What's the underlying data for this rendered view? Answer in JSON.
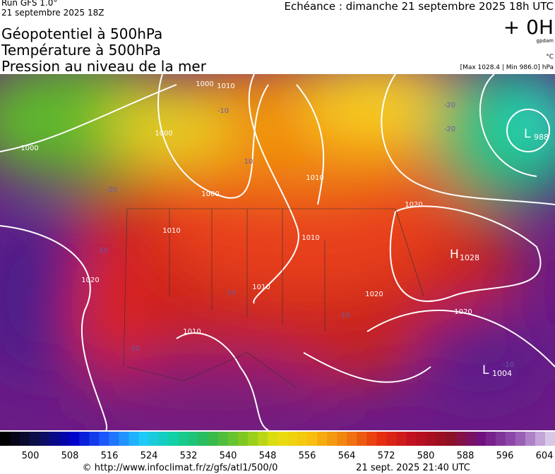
{
  "header": {
    "run": "Run GFS 1.0°",
    "run_time": "21 septembre 2025 18Z",
    "echeance": "Echéance : dimanche 21 septembre 2025 18h UTC",
    "offset": "+ 0H",
    "unit_geo": "gpdam",
    "unit_temp": "°C",
    "pressure_range": "[Max 1028.4 | Min 986.0] hPa"
  },
  "titles": [
    "Géopotentiel à 500hPa",
    "Température à 500hPa",
    "Pression au niveau de la mer"
  ],
  "map": {
    "isobar_labels": [
      "1000",
      "1000",
      "1000",
      "1000",
      "1010",
      "1010",
      "1010",
      "1010",
      "1020",
      "1020",
      "1020",
      "1020",
      "1010",
      "1010"
    ],
    "temp_labels": [
      "-10",
      "-20",
      "-20",
      "-20",
      "-10",
      "-10",
      "-10",
      "-10",
      "-10",
      "10"
    ],
    "centers": [
      {
        "letter": "H",
        "value": "1028"
      },
      {
        "letter": "L",
        "value": "988"
      },
      {
        "letter": "L",
        "value": "1004"
      }
    ]
  },
  "colorbar": {
    "ticks": [
      500,
      508,
      516,
      524,
      532,
      540,
      548,
      556,
      564,
      572,
      580,
      588,
      596,
      604
    ]
  },
  "footer": {
    "url": "© http://www.infoclimat.fr/z/gfs/atl1/500/0",
    "timestamp": "21 sept. 2025 21:40 UTC"
  }
}
